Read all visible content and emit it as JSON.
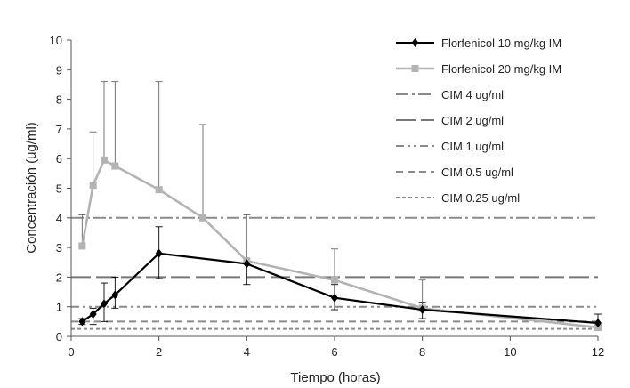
{
  "chart_data": {
    "type": "line",
    "title": "",
    "xlabel": "Tiempo (horas)",
    "ylabel": "Concentración  (ug/ml)",
    "xlim": [
      0,
      12
    ],
    "ylim": [
      0,
      10
    ],
    "xticks": [
      0,
      2,
      4,
      6,
      8,
      10,
      12
    ],
    "yticks": [
      0,
      1,
      2,
      3,
      4,
      5,
      6,
      7,
      8,
      9,
      10
    ],
    "grid": false,
    "legend_position": "top-right",
    "series": [
      {
        "name": "Florfenicol 10 mg/kg  IM",
        "color": "#000000",
        "marker": "diamond",
        "x": [
          0.25,
          0.5,
          0.75,
          1,
          2,
          4,
          6,
          8,
          12
        ],
        "y": [
          0.5,
          0.75,
          1.1,
          1.4,
          2.8,
          2.45,
          1.3,
          0.9,
          0.45
        ],
        "err_upper": [
          0.1,
          0.2,
          0.7,
          0.6,
          0.9,
          0,
          0.45,
          0.25,
          0.3
        ],
        "err_lower": [
          0.1,
          0.35,
          0.6,
          0.45,
          0.85,
          0.7,
          0.4,
          0.3,
          0.25
        ]
      },
      {
        "name": "Florfenicol  20 mg/kg IM",
        "color": "#b3b3b3",
        "marker": "square",
        "x": [
          0.25,
          0.5,
          0.75,
          1,
          2,
          3,
          4,
          6,
          8,
          12
        ],
        "y": [
          3.05,
          5.1,
          5.95,
          5.75,
          4.95,
          4.0,
          2.55,
          1.9,
          0.95,
          0.3
        ],
        "err_upper": [
          1.05,
          1.8,
          2.65,
          2.85,
          3.65,
          3.15,
          1.55,
          1.05,
          0.95,
          0
        ],
        "err_lower": [
          0,
          0,
          0,
          0,
          0,
          0,
          0,
          0,
          0,
          0
        ]
      }
    ],
    "reference_lines": [
      {
        "name": "CIM 4 ug/ml",
        "y": 4,
        "color": "#8a8a8a",
        "style": "dash-dot"
      },
      {
        "name": "CIM 2 ug/ml",
        "y": 2,
        "color": "#777777",
        "style": "long-dash"
      },
      {
        "name": "CIM 1 ug/ml",
        "y": 1,
        "color": "#8a8a8a",
        "style": "dash-dot-dot"
      },
      {
        "name": "CIM 0.5 ug/ml",
        "y": 0.5,
        "color": "#8a8a8a",
        "style": "dash"
      },
      {
        "name": "CIM 0.25 ug/ml",
        "y": 0.25,
        "color": "#8a8a8a",
        "style": "short-dash"
      }
    ]
  }
}
